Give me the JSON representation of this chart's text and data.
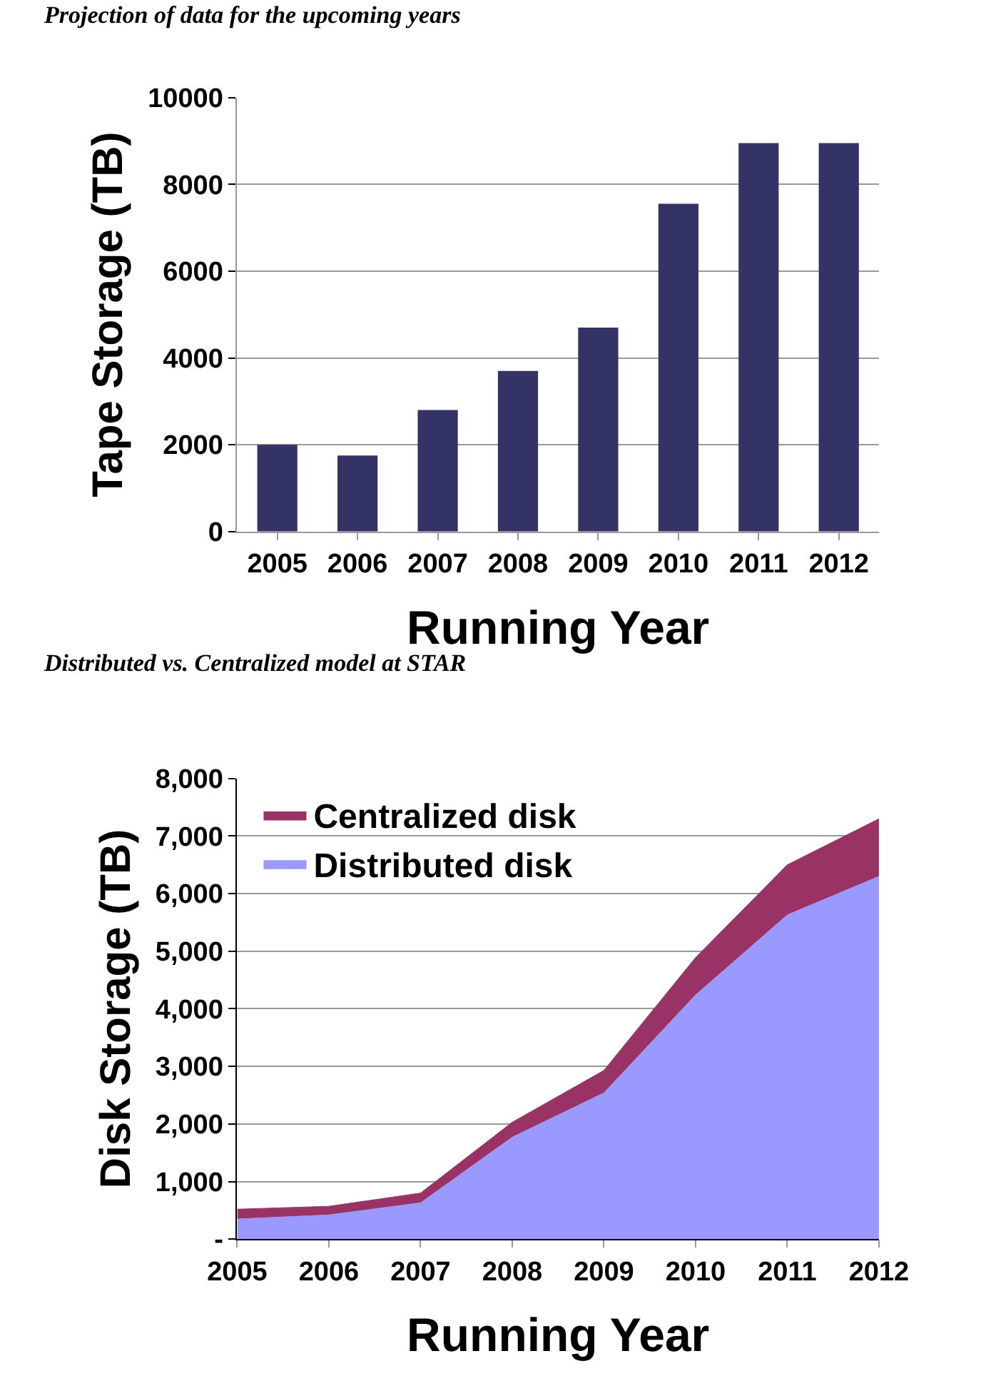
{
  "chart_data": [
    {
      "type": "bar",
      "title": "Projection of data for the upcoming years",
      "xlabel": "Running Year",
      "ylabel": "Tape Storage (TB)",
      "categories": [
        "2005",
        "2006",
        "2007",
        "2008",
        "2009",
        "2010",
        "2011",
        "2012"
      ],
      "values": [
        2000,
        1750,
        2800,
        3700,
        4700,
        7550,
        8950,
        8950
      ],
      "color": "#333366",
      "ylim": [
        0,
        10000
      ],
      "yticks": [
        0,
        2000,
        4000,
        6000,
        8000,
        10000
      ],
      "grid": "y"
    },
    {
      "type": "area",
      "title": "Distributed vs. Centralized model at STAR",
      "xlabel": "Running Year",
      "ylabel": "Disk Storage (TB)",
      "stacked": true,
      "categories": [
        "2005",
        "2006",
        "2007",
        "2008",
        "2009",
        "2010",
        "2011",
        "2012"
      ],
      "series": [
        {
          "name": "Distributed disk",
          "color": "#9999ff",
          "values": [
            350,
            420,
            630,
            1770,
            2540,
            4240,
            5630,
            6300
          ]
        },
        {
          "name": "Centralized disk",
          "color": "#993366",
          "values": [
            170,
            150,
            170,
            260,
            390,
            650,
            870,
            1000
          ]
        }
      ],
      "ylim": [
        0,
        8000
      ],
      "yticks": [
        {
          "value": 0,
          "label": "-"
        },
        {
          "value": 1000,
          "label": "1,000"
        },
        {
          "value": 2000,
          "label": "2,000"
        },
        {
          "value": 3000,
          "label": "3,000"
        },
        {
          "value": 4000,
          "label": "4,000"
        },
        {
          "value": 5000,
          "label": "5,000"
        },
        {
          "value": 6000,
          "label": "6,000"
        },
        {
          "value": 7000,
          "label": "7,000"
        },
        {
          "value": 8000,
          "label": "8,000"
        }
      ],
      "grid": "y",
      "legend": "top left"
    }
  ]
}
